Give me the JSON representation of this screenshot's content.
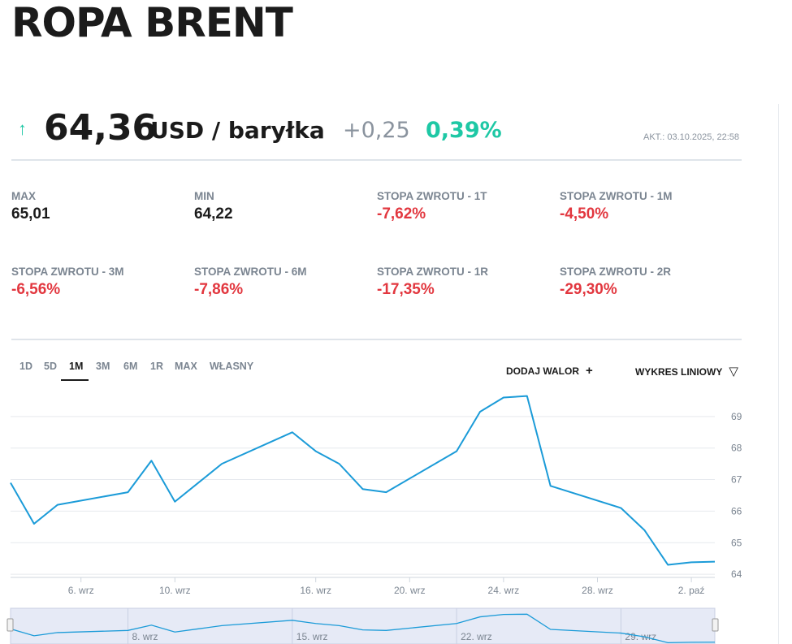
{
  "header": {
    "title": "ROPA BRENT"
  },
  "quote": {
    "arrow": "↑",
    "price": "64,36",
    "unit": "USD / baryłka",
    "change": "+0,25",
    "change_pct": "0,39%",
    "updated": "AKT.: 03.10.2025, 22:58"
  },
  "stats": [
    {
      "label": "MAX",
      "value": "65,01"
    },
    {
      "label": "MIN",
      "value": "64,22"
    },
    {
      "label": "STOPA ZWROTU - 1T",
      "value": "-7,62%"
    },
    {
      "label": "STOPA ZWROTU - 1M",
      "value": "-4,50%"
    },
    {
      "label": "STOPA ZWROTU - 3M",
      "value": "-6,56%"
    },
    {
      "label": "STOPA ZWROTU - 6M",
      "value": "-7,86%"
    },
    {
      "label": "STOPA ZWROTU - 1R",
      "value": "-17,35%"
    },
    {
      "label": "STOPA ZWROTU - 2R",
      "value": "-29,30%"
    }
  ],
  "tabs": [
    "1D",
    "5D",
    "1M",
    "3M",
    "6M",
    "1R",
    "MAX",
    "WŁASNY"
  ],
  "active_tab": "1M",
  "actions": {
    "add": "DODAJ WALOR",
    "add_icon": "+",
    "chart_type": "WYKRES LINIOWY",
    "chart_type_icon": "▽"
  },
  "colors": {
    "line": "#1b9bd8",
    "positive": "#1ec8a5",
    "negative": "#e2373f",
    "muted": "#7b8591"
  },
  "chart_data": {
    "type": "line",
    "title": "",
    "xlabel": "",
    "ylabel": "",
    "ylim": [
      63.9,
      70.0
    ],
    "yticks": [
      64,
      65,
      66,
      67,
      68,
      69
    ],
    "xlim": [
      "2025-09-03",
      "2025-10-03"
    ],
    "xticks": [
      {
        "x": "2025-09-06",
        "label": "6. wrz"
      },
      {
        "x": "2025-09-10",
        "label": "10. wrz"
      },
      {
        "x": "2025-09-16",
        "label": "16. wrz"
      },
      {
        "x": "2025-09-20",
        "label": "20. wrz"
      },
      {
        "x": "2025-09-24",
        "label": "24. wrz"
      },
      {
        "x": "2025-09-28",
        "label": "28. wrz"
      },
      {
        "x": "2025-10-02",
        "label": "2. paź"
      }
    ],
    "grid": true,
    "x": [
      "2025-09-03",
      "2025-09-04",
      "2025-09-05",
      "2025-09-08",
      "2025-09-09",
      "2025-09-10",
      "2025-09-11",
      "2025-09-12",
      "2025-09-15",
      "2025-09-16",
      "2025-09-17",
      "2025-09-18",
      "2025-09-19",
      "2025-09-22",
      "2025-09-23",
      "2025-09-24",
      "2025-09-25",
      "2025-09-26",
      "2025-09-29",
      "2025-09-30",
      "2025-10-01",
      "2025-10-02",
      "2025-10-03"
    ],
    "values": [
      66.9,
      65.6,
      66.2,
      66.6,
      67.6,
      66.3,
      66.9,
      67.5,
      68.5,
      67.9,
      67.5,
      66.7,
      66.6,
      67.9,
      69.15,
      69.6,
      69.65,
      66.8,
      66.1,
      65.4,
      64.3,
      64.38,
      64.4
    ],
    "navigator": {
      "xticks": [
        {
          "x": "2025-09-08",
          "label": "8. wrz"
        },
        {
          "x": "2025-09-15",
          "label": "15. wrz"
        },
        {
          "x": "2025-09-22",
          "label": "22. wrz"
        },
        {
          "x": "2025-09-29",
          "label": "29. wrz"
        }
      ]
    }
  }
}
